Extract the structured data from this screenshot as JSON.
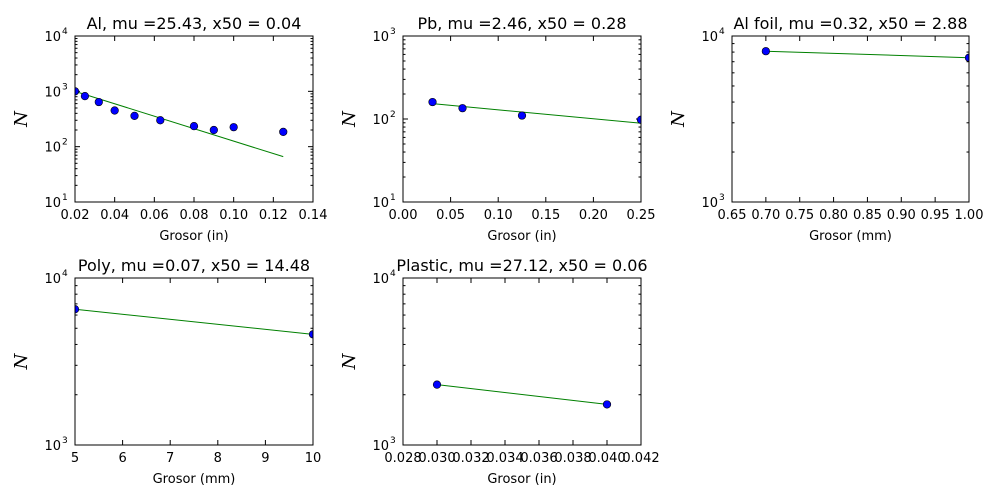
{
  "chart_data": [
    {
      "type": "scatter",
      "title": "Al, mu =25.43, x50 = 0.04",
      "xlabel": "Grosor (in)",
      "ylabel": "N",
      "xlim": [
        0.02,
        0.14
      ],
      "ylim": [
        10,
        10000
      ],
      "yscale": "log",
      "grid": false,
      "xticks": [
        "0.02",
        "0.04",
        "0.06",
        "0.08",
        "0.10",
        "0.12",
        "0.14"
      ],
      "xtick_values": [
        0.02,
        0.04,
        0.06,
        0.08,
        0.1,
        0.12,
        0.14
      ],
      "yticks": [
        {
          "value": 10,
          "base": "10",
          "exp": "1"
        },
        {
          "value": 100,
          "base": "10",
          "exp": "2"
        },
        {
          "value": 1000,
          "base": "10",
          "exp": "3"
        },
        {
          "value": 10000,
          "base": "10",
          "exp": "4"
        }
      ],
      "points": {
        "x": [
          0.02,
          0.025,
          0.032,
          0.04,
          0.05,
          0.063,
          0.08,
          0.09,
          0.1,
          0.125
        ],
        "y": [
          1000,
          820,
          640,
          450,
          360,
          300,
          235,
          200,
          225,
          185
        ],
        "color": "#0000ff"
      },
      "fit": {
        "x": [
          0.02,
          0.125
        ],
        "y": [
          1000,
          66
        ],
        "color": "#008000"
      }
    },
    {
      "type": "scatter",
      "title": "Pb, mu =2.46, x50 = 0.28",
      "xlabel": "Grosor (in)",
      "ylabel": "N",
      "xlim": [
        0.0,
        0.25
      ],
      "ylim": [
        10,
        1000
      ],
      "yscale": "log",
      "grid": false,
      "xticks": [
        "0.00",
        "0.05",
        "0.10",
        "0.15",
        "0.20",
        "0.25"
      ],
      "xtick_values": [
        0.0,
        0.05,
        0.1,
        0.15,
        0.2,
        0.25
      ],
      "yticks": [
        {
          "value": 10,
          "base": "10",
          "exp": "1"
        },
        {
          "value": 100,
          "base": "10",
          "exp": "2"
        },
        {
          "value": 1000,
          "base": "10",
          "exp": "3"
        }
      ],
      "points": {
        "x": [
          0.031,
          0.0625,
          0.125,
          0.25
        ],
        "y": [
          160,
          135,
          110,
          98
        ],
        "color": "#0000ff"
      },
      "fit": {
        "x": [
          0.031,
          0.25
        ],
        "y": [
          153,
          89
        ],
        "color": "#008000"
      }
    },
    {
      "type": "scatter",
      "title": "Al foil, mu =0.32, x50 = 2.88",
      "xlabel": "Grosor (mm)",
      "ylabel": "N",
      "xlim": [
        0.65,
        1.0
      ],
      "ylim": [
        1000,
        10000
      ],
      "yscale": "log",
      "grid": false,
      "xticks": [
        "0.65",
        "0.70",
        "0.75",
        "0.80",
        "0.85",
        "0.90",
        "0.95",
        "1.00"
      ],
      "xtick_values": [
        0.65,
        0.7,
        0.75,
        0.8,
        0.85,
        0.9,
        0.95,
        1.0
      ],
      "yticks": [
        {
          "value": 1000,
          "base": "10",
          "exp": "3"
        },
        {
          "value": 10000,
          "base": "10",
          "exp": "4"
        }
      ],
      "points": {
        "x": [
          0.7,
          1.0
        ],
        "y": [
          8100,
          7400
        ],
        "color": "#0000ff"
      },
      "fit": {
        "x": [
          0.7,
          1.0
        ],
        "y": [
          8100,
          7400
        ],
        "color": "#008000"
      }
    },
    {
      "type": "scatter",
      "title": "Poly, mu =0.07, x50 = 14.48",
      "xlabel": "Grosor (mm)",
      "ylabel": "N",
      "xlim": [
        5,
        10
      ],
      "ylim": [
        1000,
        10000
      ],
      "yscale": "log",
      "grid": false,
      "xticks": [
        "5",
        "6",
        "7",
        "8",
        "9",
        "10"
      ],
      "xtick_values": [
        5,
        6,
        7,
        8,
        9,
        10
      ],
      "yticks": [
        {
          "value": 1000,
          "base": "10",
          "exp": "3"
        },
        {
          "value": 10000,
          "base": "10",
          "exp": "4"
        }
      ],
      "points": {
        "x": [
          5,
          10
        ],
        "y": [
          6500,
          4600
        ],
        "color": "#0000ff"
      },
      "fit": {
        "x": [
          5,
          10
        ],
        "y": [
          6500,
          4600
        ],
        "color": "#008000"
      }
    },
    {
      "type": "scatter",
      "title": "Plastic, mu =27.12, x50 = 0.06",
      "xlabel": "Grosor (in)",
      "ylabel": "N",
      "xlim": [
        0.028,
        0.042
      ],
      "ylim": [
        1000,
        10000
      ],
      "yscale": "log",
      "grid": false,
      "xticks": [
        "0.028",
        "0.030",
        "0.032",
        "0.034",
        "0.036",
        "0.038",
        "0.040",
        "0.042"
      ],
      "xtick_values": [
        0.028,
        0.03,
        0.032,
        0.034,
        0.036,
        0.038,
        0.04,
        0.042
      ],
      "yticks": [
        {
          "value": 1000,
          "base": "10",
          "exp": "3"
        },
        {
          "value": 10000,
          "base": "10",
          "exp": "4"
        }
      ],
      "points": {
        "x": [
          0.03,
          0.04
        ],
        "y": [
          2300,
          1750
        ],
        "color": "#0000ff"
      },
      "fit": {
        "x": [
          0.03,
          0.04
        ],
        "y": [
          2300,
          1750
        ],
        "color": "#008000"
      }
    }
  ]
}
